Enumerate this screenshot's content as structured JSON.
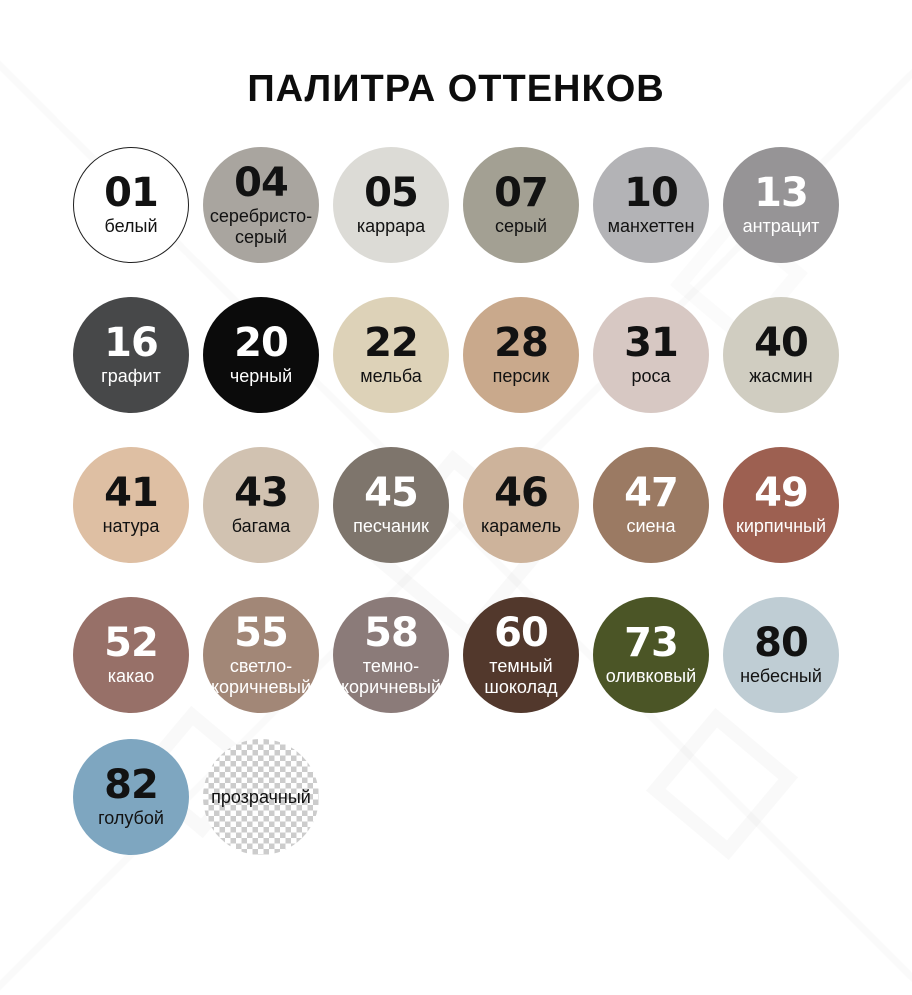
{
  "title": "ПАЛИТРА ОТТЕНКОВ",
  "palette": {
    "rows": [
      [
        {
          "number": "01",
          "label": "белый",
          "color": "#ffffff",
          "text_color": "#121212",
          "border": true
        },
        {
          "number": "04",
          "label": "серебристо-\nсерый",
          "color": "#a9a59f",
          "text_color": "#121212"
        },
        {
          "number": "05",
          "label": "каррара",
          "color": "#dcdbd6",
          "text_color": "#121212"
        },
        {
          "number": "07",
          "label": "серый",
          "color": "#a3a093",
          "text_color": "#121212"
        },
        {
          "number": "10",
          "label": "манхеттен",
          "color": "#b3b3b6",
          "text_color": "#121212"
        },
        {
          "number": "13",
          "label": "антрацит",
          "color": "#969496",
          "text_color": "#ffffff"
        }
      ],
      [
        {
          "number": "16",
          "label": "графит",
          "color": "#474849",
          "text_color": "#ffffff"
        },
        {
          "number": "20",
          "label": "черный",
          "color": "#0b0b0b",
          "text_color": "#ffffff"
        },
        {
          "number": "22",
          "label": "мельба",
          "color": "#ddd2b8",
          "text_color": "#121212"
        },
        {
          "number": "28",
          "label": "персик",
          "color": "#c9a98c",
          "text_color": "#121212"
        },
        {
          "number": "31",
          "label": "роса",
          "color": "#d7c8c3",
          "text_color": "#121212"
        },
        {
          "number": "40",
          "label": "жасмин",
          "color": "#d0cdc1",
          "text_color": "#121212"
        }
      ],
      [
        {
          "number": "41",
          "label": "натура",
          "color": "#debfa3",
          "text_color": "#121212"
        },
        {
          "number": "43",
          "label": "багама",
          "color": "#d1c2b1",
          "text_color": "#121212"
        },
        {
          "number": "45",
          "label": "песчаник",
          "color": "#7e756c",
          "text_color": "#ffffff"
        },
        {
          "number": "46",
          "label": "карамель",
          "color": "#cdb39b",
          "text_color": "#121212"
        },
        {
          "number": "47",
          "label": "сиена",
          "color": "#9b7a63",
          "text_color": "#ffffff"
        },
        {
          "number": "49",
          "label": "кирпичный",
          "color": "#9d6051",
          "text_color": "#ffffff"
        }
      ],
      [
        {
          "number": "52",
          "label": "какао",
          "color": "#977068",
          "text_color": "#ffffff"
        },
        {
          "number": "55",
          "label": "светло-\nкоричневый",
          "color": "#a28777",
          "text_color": "#ffffff"
        },
        {
          "number": "58",
          "label": "темно-\nкоричневый",
          "color": "#8b7b79",
          "text_color": "#ffffff"
        },
        {
          "number": "60",
          "label": "темный\nшоколад",
          "color": "#52382c",
          "text_color": "#ffffff"
        },
        {
          "number": "73",
          "label": "оливковый",
          "color": "#4b5526",
          "text_color": "#ffffff"
        },
        {
          "number": "80",
          "label": "небесный",
          "color": "#bfcdd4",
          "text_color": "#121212"
        }
      ],
      [
        {
          "number": "82",
          "label": "голубой",
          "color": "#7ea6c0",
          "text_color": "#121212"
        },
        {
          "number": "",
          "label": "прозрачный",
          "color": "transparent",
          "text_color": "#121212",
          "checker": true
        }
      ]
    ]
  }
}
